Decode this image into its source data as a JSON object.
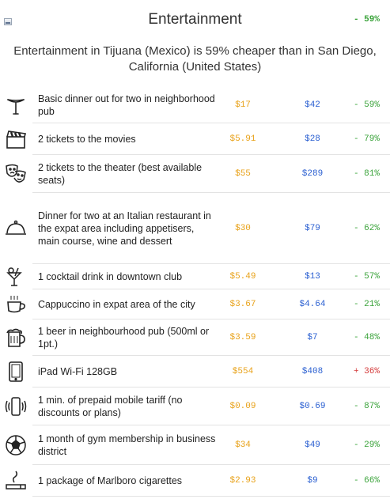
{
  "header": {
    "title": "Entertainment",
    "pct": "- 59%"
  },
  "summary": "Entertainment in Tijuana (Mexico) is 59% cheaper than in San Diego, California (United States)",
  "rows": [
    {
      "icon": "sausage-fork-icon",
      "label": "Basic dinner out for two in neighborhood pub",
      "v1": "$17",
      "v2": "$42",
      "v3": "- 59%",
      "dir": "down",
      "h": 46
    },
    {
      "icon": "clapperboard-icon",
      "label": "2 tickets to the movies",
      "v1": "$5.91",
      "v2": "$28",
      "v3": "- 79%",
      "dir": "down",
      "h": 40
    },
    {
      "icon": "theater-masks-icon",
      "label": "2 tickets to the theater (best available seats)",
      "v1": "$55",
      "v2": "$289",
      "v3": "- 81%",
      "dir": "down",
      "h": 48
    },
    {
      "icon": "cloche-icon",
      "label": "Dinner for two at an Italian restaurant in the expat area including appetisers, main course, wine and dessert",
      "v1": "$30",
      "v2": "$79",
      "v3": "- 62%",
      "dir": "down",
      "h": 90
    },
    {
      "icon": "cocktail-icon",
      "label": "1 cocktail drink in downtown club",
      "v1": "$5.49",
      "v2": "$13",
      "v3": "- 57%",
      "dir": "down",
      "h": 32
    },
    {
      "icon": "coffee-cup-icon",
      "label": "Cappuccino in expat area of the city",
      "v1": "$3.67",
      "v2": "$4.64",
      "v3": "- 21%",
      "dir": "down",
      "h": 38
    },
    {
      "icon": "beer-mug-icon",
      "label": "1 beer in neighbourhood pub (500ml or 1pt.)",
      "v1": "$3.59",
      "v2": "$7",
      "v3": "- 48%",
      "dir": "down",
      "h": 46
    },
    {
      "icon": "tablet-icon",
      "label": "iPad Wi-Fi 128GB",
      "v1": "$554",
      "v2": "$408",
      "v3": "+ 36%",
      "dir": "up",
      "h": 40
    },
    {
      "icon": "mobile-phone-icon",
      "label": "1 min. of prepaid mobile tariff (no discounts or plans)",
      "v1": "$0.09",
      "v2": "$0.69",
      "v3": "- 87%",
      "dir": "down",
      "h": 48
    },
    {
      "icon": "soccer-ball-icon",
      "label": "1 month of gym membership in business district",
      "v1": "$34",
      "v2": "$49",
      "v3": "- 29%",
      "dir": "down",
      "h": 50
    },
    {
      "icon": "cigarette-icon",
      "label": "1 package of Marlboro cigarettes",
      "v1": "$2.93",
      "v2": "$9",
      "v3": "- 66%",
      "dir": "down",
      "h": 40
    }
  ]
}
